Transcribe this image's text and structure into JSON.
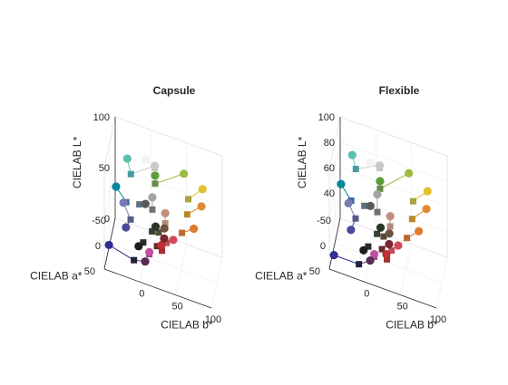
{
  "chart_data": [
    {
      "type": "scatter3d",
      "title": "Capsule",
      "xlabel": "CIELAB b*",
      "ylabel": "CIELAB a*",
      "zlabel": "CIELAB L*",
      "xlim": [
        -50,
        100
      ],
      "ylim": [
        -50,
        50
      ],
      "zlim": [
        0,
        100
      ],
      "xticks": [
        "0",
        "50",
        "100"
      ],
      "yticks": [
        "-50",
        "0",
        "50"
      ],
      "zticks": [
        "0",
        "50",
        "100"
      ],
      "grid": true,
      "series": [
        {
          "marker": "circle",
          "values": [
            {
              "b": 0,
              "a": 0,
              "L": 96,
              "color": "#f2f2f2"
            },
            {
              "b": 80,
              "a": 0,
              "L": 87,
              "color": "#e3c12a"
            },
            {
              "b": 80,
              "a": 10,
              "L": 75,
              "color": "#e08a33"
            },
            {
              "b": 72,
              "a": 28,
              "L": 60,
              "color": "#e07b2c"
            },
            {
              "b": 50,
              "a": -25,
              "L": 82,
              "color": "#9cbb41"
            },
            {
              "b": 10,
              "a": -20,
              "L": 82,
              "color": "#c9c9c9"
            },
            {
              "b": 12,
              "a": -10,
              "L": 78,
              "color": "#5c9e38"
            },
            {
              "b": -30,
              "a": -30,
              "L": 74,
              "color": "#5bbfb0"
            },
            {
              "b": 30,
              "a": 15,
              "L": 58,
              "color": "#c08f7a"
            },
            {
              "b": 10,
              "a": 2,
              "L": 62,
              "color": "#a5a5a5"
            },
            {
              "b": 45,
              "a": 40,
              "L": 48,
              "color": "#d24a58"
            },
            {
              "b": 30,
              "a": 50,
              "L": 44,
              "color": "#bf2f33"
            },
            {
              "b": 28,
              "a": 10,
              "L": 40,
              "color": "#6b5340"
            },
            {
              "b": 0,
              "a": 0,
              "L": 52,
              "color": "#5a5a5a"
            },
            {
              "b": -45,
              "a": -25,
              "L": 45,
              "color": "#00879b"
            },
            {
              "b": -30,
              "a": 5,
              "L": 48,
              "color": "#7a7ab5"
            },
            {
              "b": -25,
              "a": 15,
              "L": 30,
              "color": "#4a4a98"
            },
            {
              "b": -45,
              "a": 40,
              "L": 20,
              "color": "#303090"
            },
            {
              "b": 10,
              "a": 30,
              "L": 22,
              "color": "#c050a0"
            },
            {
              "b": 5,
              "a": 35,
              "L": 14,
              "color": "#5a2a5a"
            },
            {
              "b": -5,
              "a": 30,
              "L": 24,
              "color": "#1c1c1c"
            },
            {
              "b": 15,
              "a": 5,
              "L": 36,
              "color": "#2a3525"
            },
            {
              "b": 30,
              "a": 25,
              "L": 38,
              "color": "#7a2830"
            }
          ]
        },
        {
          "marker": "square",
          "values": [
            {
              "b": 10,
              "a": -20,
              "L": 80,
              "color": "#c0c0c0"
            },
            {
              "b": 60,
              "a": 0,
              "L": 72,
              "color": "#a8a53a"
            },
            {
              "b": 60,
              "a": 10,
              "L": 62,
              "color": "#b88a2a"
            },
            {
              "b": 55,
              "a": 25,
              "L": 50,
              "color": "#b86a30"
            },
            {
              "b": 12,
              "a": -10,
              "L": 70,
              "color": "#6a8a4a"
            },
            {
              "b": -25,
              "a": -30,
              "L": 60,
              "color": "#4a9aa0"
            },
            {
              "b": 30,
              "a": 15,
              "L": 48,
              "color": "#b08a78"
            },
            {
              "b": 10,
              "a": 2,
              "L": 50,
              "color": "#707070"
            },
            {
              "b": 35,
              "a": 35,
              "L": 40,
              "color": "#c04a5a"
            },
            {
              "b": 30,
              "a": 45,
              "L": 36,
              "color": "#a03030"
            },
            {
              "b": 20,
              "a": 10,
              "L": 34,
              "color": "#5a4a3a"
            },
            {
              "b": -10,
              "a": -10,
              "L": 44,
              "color": "#607080"
            },
            {
              "b": -30,
              "a": -20,
              "L": 36,
              "color": "#3a6a9a"
            },
            {
              "b": -20,
              "a": 5,
              "L": 34,
              "color": "#5a5a8a"
            },
            {
              "b": 10,
              "a": 30,
              "L": 20,
              "color": "#8a4a8a"
            },
            {
              "b": -10,
              "a": 40,
              "L": 14,
              "color": "#202040"
            },
            {
              "b": 10,
              "a": 5,
              "L": 30,
              "color": "#354030"
            },
            {
              "b": 0,
              "a": 20,
              "L": 24,
              "color": "#2a2a2a"
            },
            {
              "b": 20,
              "a": 25,
              "L": 28,
              "color": "#6a2a2a"
            }
          ]
        }
      ],
      "links": [
        [
          0,
          0
        ],
        [
          1,
          1
        ],
        [
          2,
          2
        ],
        [
          3,
          3
        ],
        [
          4,
          4
        ],
        [
          5,
          5
        ],
        [
          6,
          4
        ],
        [
          7,
          5
        ],
        [
          8,
          6
        ],
        [
          9,
          7
        ],
        [
          10,
          8
        ],
        [
          11,
          9
        ],
        [
          12,
          10
        ],
        [
          13,
          11
        ],
        [
          14,
          12
        ],
        [
          15,
          13
        ],
        [
          16,
          13
        ],
        [
          17,
          15
        ],
        [
          18,
          14
        ],
        [
          19,
          15
        ],
        [
          20,
          17
        ],
        [
          21,
          16
        ],
        [
          22,
          18
        ]
      ]
    },
    {
      "type": "scatter3d",
      "title": "Flexible",
      "xlabel": "CIELAB b*",
      "ylabel": "CIELAB a*",
      "zlabel": "CIELAB L*",
      "xlim": [
        -50,
        100
      ],
      "ylim": [
        -50,
        50
      ],
      "zlim": [
        20,
        100
      ],
      "xticks": [
        "0",
        "50",
        "100"
      ],
      "yticks": [
        "-50",
        "0",
        "50"
      ],
      "zticks": [
        "40",
        "60",
        "80",
        "100"
      ],
      "grid": true,
      "series": [
        {
          "marker": "circle",
          "values": [
            {
              "b": 0,
              "a": 0,
              "L": 94,
              "color": "#f2f2f2"
            },
            {
              "b": 80,
              "a": 0,
              "L": 88,
              "color": "#e3c12a"
            },
            {
              "b": 80,
              "a": 10,
              "L": 78,
              "color": "#e08a33"
            },
            {
              "b": 72,
              "a": 28,
              "L": 66,
              "color": "#e07b2c"
            },
            {
              "b": 50,
              "a": -25,
              "L": 86,
              "color": "#9cbb41"
            },
            {
              "b": 10,
              "a": -20,
              "L": 86,
              "color": "#c9c9c9"
            },
            {
              "b": 12,
              "a": -10,
              "L": 78,
              "color": "#5c9e38"
            },
            {
              "b": -30,
              "a": -30,
              "L": 82,
              "color": "#5bbfb0"
            },
            {
              "b": 30,
              "a": 15,
              "L": 64,
              "color": "#c08f7a"
            },
            {
              "b": 10,
              "a": 2,
              "L": 72,
              "color": "#a5a5a5"
            },
            {
              "b": 45,
              "a": 40,
              "L": 54,
              "color": "#d24a58"
            },
            {
              "b": 30,
              "a": 50,
              "L": 48,
              "color": "#bf2f33"
            },
            {
              "b": 28,
              "a": 10,
              "L": 48,
              "color": "#6b5340"
            },
            {
              "b": 0,
              "a": 0,
              "L": 60,
              "color": "#5a5a5a"
            },
            {
              "b": -45,
              "a": -25,
              "L": 58,
              "color": "#00879b"
            },
            {
              "b": -30,
              "a": 5,
              "L": 58,
              "color": "#7a7ab5"
            },
            {
              "b": -25,
              "a": 15,
              "L": 42,
              "color": "#4a4a98"
            },
            {
              "b": -45,
              "a": 40,
              "L": 28,
              "color": "#303090"
            },
            {
              "b": 10,
              "a": 30,
              "L": 36,
              "color": "#c050a0"
            },
            {
              "b": 5,
              "a": 35,
              "L": 32,
              "color": "#5a2a5a"
            },
            {
              "b": -5,
              "a": 30,
              "L": 36,
              "color": "#1c1c1c"
            },
            {
              "b": 15,
              "a": 5,
              "L": 48,
              "color": "#2a3525"
            },
            {
              "b": 30,
              "a": 25,
              "L": 46,
              "color": "#7a2830"
            }
          ]
        },
        {
          "marker": "square",
          "values": [
            {
              "b": 10,
              "a": -20,
              "L": 84,
              "color": "#c0c0c0"
            },
            {
              "b": 60,
              "a": 0,
              "L": 76,
              "color": "#a8a53a"
            },
            {
              "b": 60,
              "a": 10,
              "L": 66,
              "color": "#b88a2a"
            },
            {
              "b": 55,
              "a": 25,
              "L": 56,
              "color": "#b86a30"
            },
            {
              "b": 12,
              "a": -10,
              "L": 72,
              "color": "#6a8a4a"
            },
            {
              "b": -25,
              "a": -30,
              "L": 72,
              "color": "#4a9aa0"
            },
            {
              "b": 30,
              "a": 15,
              "L": 56,
              "color": "#b08a78"
            },
            {
              "b": 10,
              "a": 2,
              "L": 58,
              "color": "#707070"
            },
            {
              "b": 35,
              "a": 35,
              "L": 46,
              "color": "#c04a5a"
            },
            {
              "b": 30,
              "a": 45,
              "L": 42,
              "color": "#a03030"
            },
            {
              "b": 20,
              "a": 10,
              "L": 44,
              "color": "#5a4a3a"
            },
            {
              "b": -10,
              "a": -10,
              "L": 54,
              "color": "#607080"
            },
            {
              "b": -30,
              "a": -20,
              "L": 50,
              "color": "#3a6a9a"
            },
            {
              "b": -20,
              "a": 5,
              "L": 48,
              "color": "#5a5a8a"
            },
            {
              "b": 10,
              "a": 30,
              "L": 34,
              "color": "#8a4a8a"
            },
            {
              "b": -10,
              "a": 40,
              "L": 28,
              "color": "#202040"
            },
            {
              "b": 10,
              "a": 5,
              "L": 42,
              "color": "#354030"
            },
            {
              "b": 0,
              "a": 20,
              "L": 36,
              "color": "#2a2a2a"
            },
            {
              "b": 20,
              "a": 25,
              "L": 40,
              "color": "#6a2a2a"
            }
          ]
        }
      ],
      "links": [
        [
          0,
          0
        ],
        [
          1,
          1
        ],
        [
          2,
          2
        ],
        [
          3,
          3
        ],
        [
          4,
          4
        ],
        [
          5,
          5
        ],
        [
          6,
          4
        ],
        [
          7,
          5
        ],
        [
          8,
          6
        ],
        [
          9,
          7
        ],
        [
          10,
          8
        ],
        [
          11,
          9
        ],
        [
          12,
          10
        ],
        [
          13,
          11
        ],
        [
          14,
          12
        ],
        [
          15,
          13
        ],
        [
          16,
          13
        ],
        [
          17,
          15
        ],
        [
          18,
          14
        ],
        [
          19,
          15
        ],
        [
          20,
          17
        ],
        [
          21,
          16
        ],
        [
          22,
          18
        ]
      ]
    }
  ]
}
